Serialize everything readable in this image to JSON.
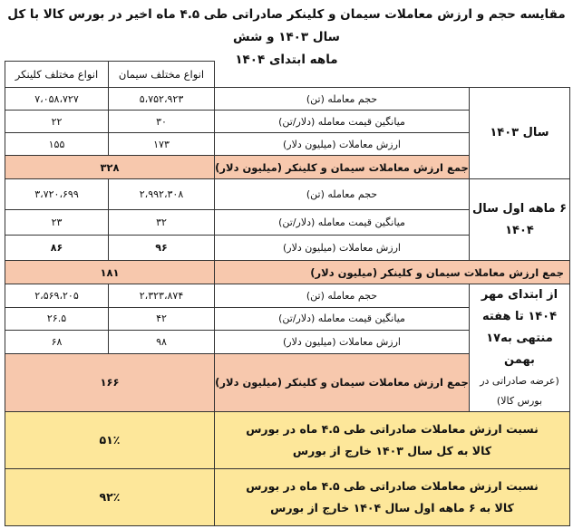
{
  "title": {
    "line1": "مقایسه حجم و ارزش معاملات سیمان و کلینکر صادراتی طی ۴.۵ ماه اخیر در بورس کالا با کل سال ۱۴۰۳ و شش",
    "line2": "ماهه ابتدای ۱۴۰۴"
  },
  "headers": {
    "cement": "انواع مختلف سیمان",
    "clinker": "انواع مختلف کلینکر"
  },
  "labels": {
    "volume": "حجم معامله (تن)",
    "avg_price": "میانگین قیمت معامله (دلار/تن)",
    "value": "ارزش معاملات (میلیون دلار)",
    "sum": "جمع ارزش معاملات سیمان و کلینکر (میلیون دلار)"
  },
  "periods": [
    {
      "name": "سال ۱۴۰۳",
      "volume": [
        "۵،۷۵۲،۹۲۳",
        "۷،۰۵۸،۷۲۷"
      ],
      "avg_price": [
        "۳۰",
        "۲۲"
      ],
      "value": [
        "۱۷۳",
        "۱۵۵"
      ],
      "sum": "۳۲۸"
    },
    {
      "name": "۶ ماهه اول سال ۱۴۰۴",
      "volume": [
        "۲،۹۹۲،۳۰۸",
        "۳،۷۲۰،۶۹۹"
      ],
      "avg_price": [
        "۳۲",
        "۲۳"
      ],
      "value": [
        "۹۶",
        "۸۶"
      ],
      "sum": "۱۸۱"
    },
    {
      "name": "از ابتدای مهر ۱۴۰۴ تا هفته منتهی به۱۷ بهمن",
      "note": "(عرضه صادراتی در بورس کالا)",
      "volume": [
        "۲،۳۲۳،۸۷۴",
        "۲،۵۶۹،۲۰۵"
      ],
      "avg_price": [
        "۴۲",
        "۲۶.۵"
      ],
      "value": [
        "۹۸",
        "۶۸"
      ],
      "sum": "۱۶۶"
    }
  ],
  "ratios": [
    {
      "label": "نسبت ارزش معاملات صادراتی طی ۴.۵ ماه در بورس کالا به کل سال ۱۴۰۳ خارج از بورس",
      "value": "۵۱٪"
    },
    {
      "label": "نسبت ارزش معاملات صادراتی طی ۴.۵ ماه در بورس کالا به ۶ ماهه اول سال ۱۴۰۴ خارج از بورس",
      "value": "۹۲٪"
    }
  ],
  "colors": {
    "sum_row": "#f7c8ad",
    "ratio_row": "#fde79a"
  }
}
